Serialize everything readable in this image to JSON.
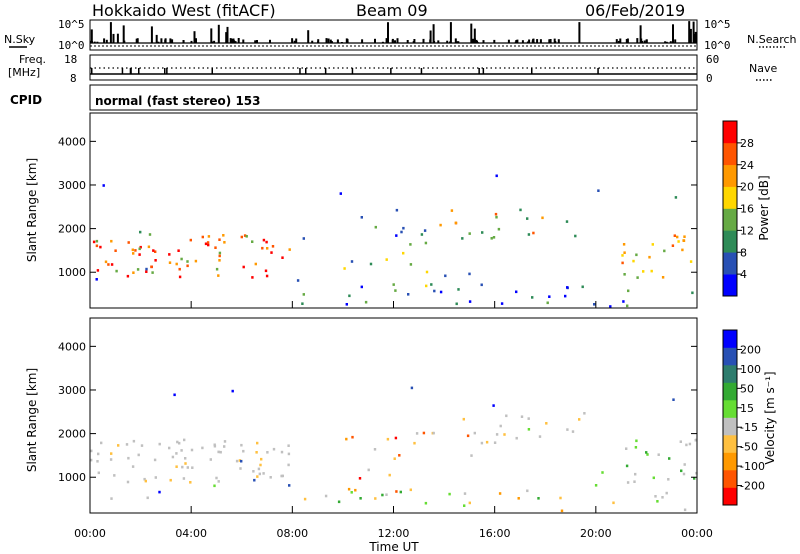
{
  "header": {
    "title": "Hokkaido West (fitACF)",
    "beam": "Beam 09",
    "date": "06/Feb/2019"
  },
  "panel_labels": {
    "nsky": "N.Sky",
    "freq_line1": "Freq.",
    "freq_line2": "[MHz]",
    "cpid": "CPID",
    "nsearch": "N.Search",
    "nave": "Nave",
    "cpid_text": "normal (fast stereo) 153",
    "noise_top": "10^5",
    "noise_bottom": "10^0",
    "freq_top": "18",
    "freq_bottom": "8",
    "nave_top": "60",
    "nave_bottom": "0"
  },
  "colors": {
    "power": [
      "#0000ff",
      "#2850b4",
      "#2e8b57",
      "#66aa44",
      "#ffd700",
      "#ff9900",
      "#ff5500",
      "#ff0000"
    ],
    "velocity": [
      "#ff0000",
      "#ff5500",
      "#ff9900",
      "#ffc040",
      "#c0c0c0",
      "#66dd33",
      "#33aa33",
      "#2e7d6e",
      "#2850b4",
      "#0000ff"
    ]
  },
  "chart_data": [
    {
      "type": "heatmap",
      "title": "Power",
      "xlabel": "",
      "ylabel": "Slant Range [km]",
      "x_range_hours": [
        0,
        24
      ],
      "ylim": [
        180,
        4650
      ],
      "y_ticks": [
        "1000",
        "2000",
        "3000",
        "4000"
      ],
      "colorbar_label": "Power [dB]",
      "colorbar_ticks": [
        "4",
        "8",
        "12",
        "16",
        "20",
        "24",
        "28"
      ]
    },
    {
      "type": "heatmap",
      "title": "Velocity",
      "xlabel": "Time UT",
      "ylabel": "Slant Range [km]",
      "x_range_hours": [
        0,
        24
      ],
      "ylim": [
        180,
        4650
      ],
      "x_ticks": [
        "00:00",
        "04:00",
        "08:00",
        "12:00",
        "16:00",
        "20:00",
        "00:00"
      ],
      "y_ticks": [
        "1000",
        "2000",
        "3000",
        "4000"
      ],
      "colorbar_label": "Velocity [m s⁻¹]",
      "colorbar_ticks": [
        "200",
        "100",
        "50",
        "15",
        "-15",
        "-50",
        "-100",
        "-200"
      ]
    }
  ]
}
